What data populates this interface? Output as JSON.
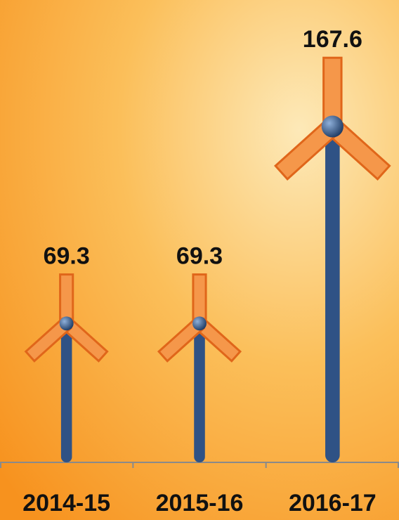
{
  "chart_data": {
    "type": "turbine",
    "categories": [
      "2014-15",
      "2015-16",
      "2016-17"
    ],
    "values": [
      69.3,
      69.3,
      167.6
    ],
    "color": "#2f5285",
    "blade_color": "#f5974a"
  }
}
